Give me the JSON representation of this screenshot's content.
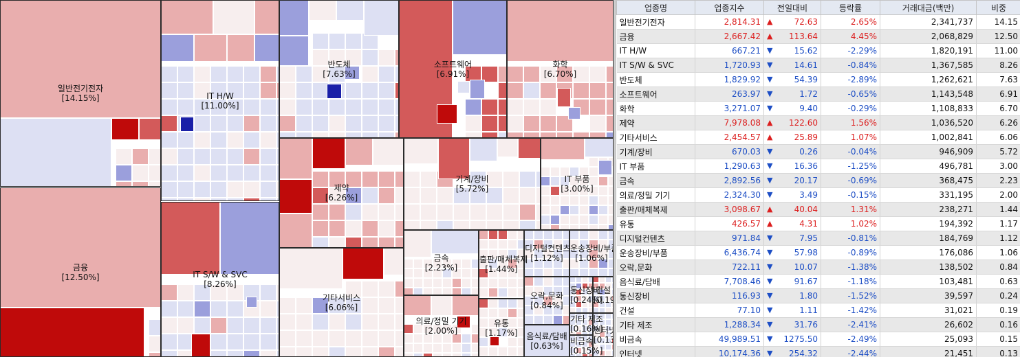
{
  "table": {
    "headers": [
      "업종명",
      "업종지수",
      "전일대비",
      "등락률",
      "거래대금(백만)",
      "비중"
    ],
    "rows": [
      {
        "name": "일반전기전자",
        "index": "2,814.31",
        "dir": "up",
        "change": "72.63",
        "rate": "2.65%",
        "volume": "2,341,737",
        "weight": "14.15"
      },
      {
        "name": "금융",
        "index": "2,667.42",
        "dir": "up",
        "change": "113.64",
        "rate": "4.45%",
        "volume": "2,068,829",
        "weight": "12.50"
      },
      {
        "name": "IT H/W",
        "index": "667.21",
        "dir": "down",
        "change": "15.62",
        "rate": "-2.29%",
        "volume": "1,820,191",
        "weight": "11.00"
      },
      {
        "name": "IT S/W & SVC",
        "index": "1,720.93",
        "dir": "down",
        "change": "14.61",
        "rate": "-0.84%",
        "volume": "1,367,585",
        "weight": "8.26"
      },
      {
        "name": "반도체",
        "index": "1,829.92",
        "dir": "down",
        "change": "54.39",
        "rate": "-2.89%",
        "volume": "1,262,621",
        "weight": "7.63"
      },
      {
        "name": "소프트웨어",
        "index": "263.97",
        "dir": "down",
        "change": "1.72",
        "rate": "-0.65%",
        "volume": "1,143,548",
        "weight": "6.91"
      },
      {
        "name": "화학",
        "index": "3,271.07",
        "dir": "down",
        "change": "9.40",
        "rate": "-0.29%",
        "volume": "1,108,833",
        "weight": "6.70"
      },
      {
        "name": "제약",
        "index": "7,978.08",
        "dir": "up",
        "change": "122.60",
        "rate": "1.56%",
        "volume": "1,036,520",
        "weight": "6.26"
      },
      {
        "name": "기타서비스",
        "index": "2,454.57",
        "dir": "up",
        "change": "25.89",
        "rate": "1.07%",
        "volume": "1,002,841",
        "weight": "6.06"
      },
      {
        "name": "기계/장비",
        "index": "670.03",
        "dir": "down",
        "change": "0.26",
        "rate": "-0.04%",
        "volume": "946,909",
        "weight": "5.72"
      },
      {
        "name": "IT 부품",
        "index": "1,290.63",
        "dir": "down",
        "change": "16.36",
        "rate": "-1.25%",
        "volume": "496,781",
        "weight": "3.00"
      },
      {
        "name": "금속",
        "index": "2,892.56",
        "dir": "down",
        "change": "20.17",
        "rate": "-0.69%",
        "volume": "368,475",
        "weight": "2.23"
      },
      {
        "name": "의료/정밀 기기",
        "index": "2,324.30",
        "dir": "down",
        "change": "3.49",
        "rate": "-0.15%",
        "volume": "331,195",
        "weight": "2.00"
      },
      {
        "name": "출판/매체복제",
        "index": "3,098.67",
        "dir": "up",
        "change": "40.04",
        "rate": "1.31%",
        "volume": "238,271",
        "weight": "1.44"
      },
      {
        "name": "유통",
        "index": "426.57",
        "dir": "up",
        "change": "4.31",
        "rate": "1.02%",
        "volume": "194,392",
        "weight": "1.17"
      },
      {
        "name": "디지털컨텐츠",
        "index": "971.84",
        "dir": "down",
        "change": "7.95",
        "rate": "-0.81%",
        "volume": "184,769",
        "weight": "1.12"
      },
      {
        "name": "운송장비/부품",
        "index": "6,436.74",
        "dir": "down",
        "change": "57.98",
        "rate": "-0.89%",
        "volume": "176,086",
        "weight": "1.06"
      },
      {
        "name": "오락,문화",
        "index": "722.11",
        "dir": "down",
        "change": "10.07",
        "rate": "-1.38%",
        "volume": "138,502",
        "weight": "0.84"
      },
      {
        "name": "음식료/담배",
        "index": "7,708.46",
        "dir": "down",
        "change": "91.67",
        "rate": "-1.18%",
        "volume": "103,481",
        "weight": "0.63"
      },
      {
        "name": "통신장비",
        "index": "116.93",
        "dir": "down",
        "change": "1.80",
        "rate": "-1.52%",
        "volume": "39,597",
        "weight": "0.24"
      },
      {
        "name": "건설",
        "index": "77.10",
        "dir": "down",
        "change": "1.11",
        "rate": "-1.42%",
        "volume": "31,021",
        "weight": "0.19"
      },
      {
        "name": "기타 제조",
        "index": "1,288.34",
        "dir": "down",
        "change": "31.76",
        "rate": "-2.41%",
        "volume": "26,602",
        "weight": "0.16"
      },
      {
        "name": "비금속",
        "index": "49,989.51",
        "dir": "down",
        "change": "1275.50",
        "rate": "-2.49%",
        "volume": "25,093",
        "weight": "0.15"
      },
      {
        "name": "인터넷",
        "index": "10,174.36",
        "dir": "down",
        "change": "254.32",
        "rate": "-2.44%",
        "volume": "21,451",
        "weight": "0.13"
      }
    ]
  },
  "treemap": {
    "sectors": [
      {
        "name": "일반전기전자",
        "pct": "[14.15%]"
      },
      {
        "name": "금융",
        "pct": "[12.50%]"
      },
      {
        "name": "IT H/W",
        "pct": "[11.00%]"
      },
      {
        "name": "IT S/W & SVC",
        "pct": "[8.26%]"
      },
      {
        "name": "반도체",
        "pct": "[7.63%]"
      },
      {
        "name": "소프트웨어",
        "pct": "[6.91%]"
      },
      {
        "name": "화학",
        "pct": "[6.70%]"
      },
      {
        "name": "제약",
        "pct": "[6.26%]"
      },
      {
        "name": "기타서비스",
        "pct": "[6.06%]"
      },
      {
        "name": "기계/장비",
        "pct": "[5.72%]"
      },
      {
        "name": "IT 부품",
        "pct": "[3.00%]"
      },
      {
        "name": "금속",
        "pct": "[2.23%]"
      },
      {
        "name": "의료/정밀 기기",
        "pct": "[2.00%]"
      },
      {
        "name": "출판/매체복제",
        "pct": "[1.44%]"
      },
      {
        "name": "유통",
        "pct": "[1.17%]"
      },
      {
        "name": "디지털컨텐츠",
        "pct": "[1.12%]"
      },
      {
        "name": "운송장비/부품",
        "pct": "[1.06%]"
      },
      {
        "name": "오락,문화",
        "pct": "[0.84%]"
      },
      {
        "name": "음식료/담배",
        "pct": "[0.63%]"
      },
      {
        "name": "통신장비",
        "pct": "[0.24%]"
      },
      {
        "name": "건설",
        "pct": "[0.19%]"
      },
      {
        "name": "기타 제조",
        "pct": "[0.16%]"
      },
      {
        "name": "비금속",
        "pct": "[0.15%]"
      },
      {
        "name": "인터넷",
        "pct": "[0.13%]"
      }
    ],
    "colors": {
      "strong_up": "#bf0a0a",
      "up": "#d35a5a",
      "light_up": "#e9aeae",
      "flat": "#f7eeee",
      "light_down": "#dde0f3",
      "down": "#9b9fdc",
      "strong_down": "#1a20a8"
    }
  }
}
